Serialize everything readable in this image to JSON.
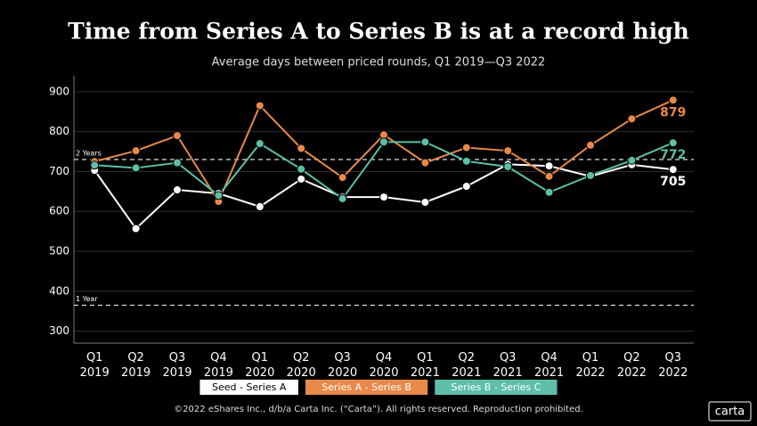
{
  "chart_data": {
    "type": "line",
    "title": "Time from Series A to Series B is at a record high",
    "subtitle": "Average days between priced rounds, Q1 2019—Q3 2022",
    "categories": [
      "Q1 2019",
      "Q2 2019",
      "Q3 2019",
      "Q4 2019",
      "Q1 2020",
      "Q2 2020",
      "Q3 2020",
      "Q4 2020",
      "Q1 2021",
      "Q2 2021",
      "Q3 2021",
      "Q4 2021",
      "Q1 2022",
      "Q2 2022",
      "Q3 2022"
    ],
    "series": [
      {
        "name": "Seed - Series A",
        "color": "#ffffff",
        "values": [
          703,
          557,
          654,
          645,
          612,
          681,
          636,
          636,
          623,
          663,
          718,
          714,
          688,
          717,
          705
        ]
      },
      {
        "name": "Series A - Series B",
        "color": "#e8894a",
        "values": [
          725,
          752,
          790,
          625,
          865,
          758,
          685,
          792,
          722,
          760,
          752,
          688,
          766,
          832,
          879
        ]
      },
      {
        "name": "Series B - Series C",
        "color": "#5dbfa8",
        "values": [
          716,
          709,
          722,
          640,
          770,
          706,
          632,
          774,
          774,
          726,
          712,
          648,
          690,
          728,
          772
        ]
      }
    ],
    "reference_lines": [
      {
        "value": 730,
        "label": "2 Years"
      },
      {
        "value": 365,
        "label": "1 Year"
      }
    ],
    "ylim": [
      270,
      940
    ],
    "yticks": [
      300,
      400,
      500,
      600,
      700,
      800,
      900
    ],
    "grid": true,
    "footer": "©2022 eShares Inc., d/b/a Carta Inc. (“Carta”). All rights reserved. Reproduction prohibited.",
    "logo": "carta"
  }
}
